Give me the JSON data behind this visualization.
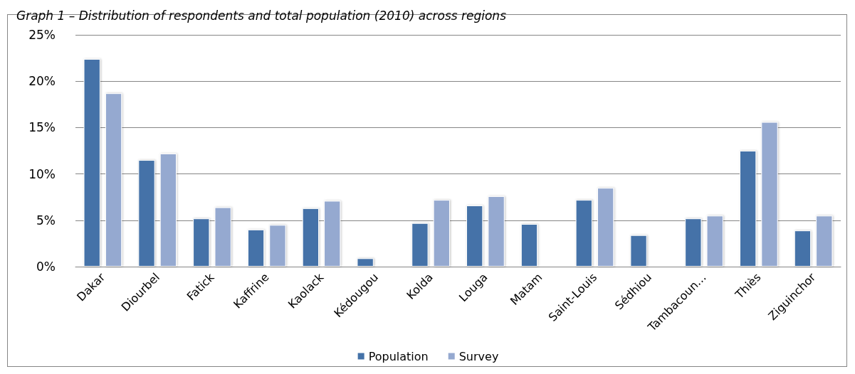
{
  "chart_data": {
    "type": "bar",
    "title": "Graph 1 – Distribution of respondents and total population (2010) across regions",
    "categories": [
      "Dakar",
      "Diourbel",
      "Fatick",
      "Kaffrine",
      "Kaolack",
      "Kédougou",
      "Kolda",
      "Louga",
      "Matam",
      "Saint-Louis",
      "Sédhiou",
      "Tambacoun…",
      "Thiès",
      "Ziguinchor"
    ],
    "series": [
      {
        "name": "Population",
        "color": "#4472a8",
        "values": [
          22.4,
          11.5,
          5.2,
          4.0,
          6.3,
          0.9,
          4.7,
          6.6,
          4.6,
          7.2,
          3.4,
          5.2,
          12.5,
          3.9
        ]
      },
      {
        "name": "Survey",
        "color": "#95a9d0",
        "values": [
          18.7,
          12.2,
          6.4,
          4.5,
          7.1,
          null,
          7.2,
          7.6,
          null,
          8.5,
          null,
          5.5,
          15.6,
          5.5
        ]
      }
    ],
    "ylim": [
      0,
      25
    ],
    "yticks": [
      {
        "value": 0,
        "label": "0%"
      },
      {
        "value": 5,
        "label": "5%"
      },
      {
        "value": 10,
        "label": "10%"
      },
      {
        "value": 15,
        "label": "15%"
      },
      {
        "value": 20,
        "label": "20%"
      },
      {
        "value": 25,
        "label": "25%"
      }
    ],
    "grid": "y",
    "legend": "bottom"
  }
}
